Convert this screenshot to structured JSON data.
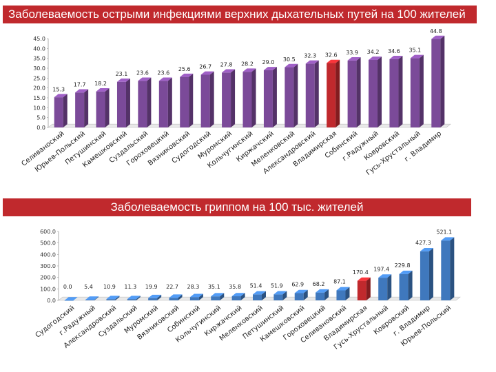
{
  "chart_data": [
    {
      "type": "bar",
      "title": "Заболеваемость острыми инфекциями верхних дыхательных путей на 100 жителей",
      "xlabel": "",
      "ylabel": "",
      "ylim": [
        0,
        45
      ],
      "yticks": [
        "0.0",
        "5.0",
        "10.0",
        "15.0",
        "20.0",
        "25.0",
        "30.0",
        "35.0",
        "40.0",
        "45.0"
      ],
      "categories": [
        "Селиваноский",
        "Юрьев-Польский",
        "Петушинский",
        "Камешковский",
        "Суздальский",
        "Гороховецкий",
        "Вязниковский",
        "Судогодский",
        "Муромский",
        "Кольчугинский",
        "Киржачский",
        "Меленковский",
        "Александровский",
        "Владимирская",
        "Собинский",
        "г.Радужный",
        "Ковровский",
        "Гусь-Хрустальный",
        "г. Владимир"
      ],
      "values": [
        15.3,
        17.7,
        18.2,
        23.1,
        23.6,
        23.6,
        25.6,
        26.7,
        27.8,
        28.2,
        29.0,
        30.5,
        32.3,
        32.6,
        33.9,
        34.2,
        34.6,
        35.1,
        44.8
      ],
      "labels": [
        "15.3",
        "17.7",
        "18.2",
        "23.1",
        "23.6",
        "23.6",
        "25.6",
        "26.7",
        "27.8",
        "28.2",
        "29.0",
        "30.5",
        "32.3",
        "32.6",
        "33.9",
        "34.2",
        "34.6",
        "35.1",
        "44.8"
      ],
      "highlight_index": 13,
      "colors": {
        "bar": "#7b4a99",
        "highlight": "#c0292d"
      }
    },
    {
      "type": "bar",
      "title": "Заболеваемость гриппом на 100 тыс. жителей",
      "xlabel": "",
      "ylabel": "",
      "ylim": [
        0,
        600
      ],
      "yticks": [
        "0.0",
        "100.0",
        "200.0",
        "300.0",
        "400.0",
        "500.0",
        "600.0"
      ],
      "categories": [
        "Судогодский",
        "г.Радужный",
        "Александровский",
        "Суздальский",
        "Муромский",
        "Вязниковский",
        "Собинский",
        "Кольчугинский",
        "Киржачский",
        "Меленковский",
        "Петушинский",
        "Камешковский",
        "Гороховецкий",
        "Селивановский",
        "Владимирская",
        "Гусь-Хрустальный",
        "Ковровский",
        "г. Владимир",
        "Юрьев-Польский"
      ],
      "values": [
        0.0,
        5.4,
        10.9,
        11.3,
        19.9,
        22.7,
        28.3,
        35.1,
        35.8,
        51.4,
        51.9,
        62.9,
        68.2,
        87.1,
        170.4,
        197.4,
        229.8,
        427.3,
        521.1
      ],
      "labels": [
        "0.0",
        "5.4",
        "10.9",
        "11.3",
        "19.9",
        "22.7",
        "28.3",
        "35.1",
        "35.8",
        "51.4",
        "51.9",
        "62.9",
        "68.2",
        "87.1",
        "170.4",
        "197.4",
        "229.8",
        "427.3",
        "521.1"
      ],
      "highlight_index": 14,
      "colors": {
        "bar": "#3f78bd",
        "highlight": "#c0292d"
      }
    }
  ]
}
